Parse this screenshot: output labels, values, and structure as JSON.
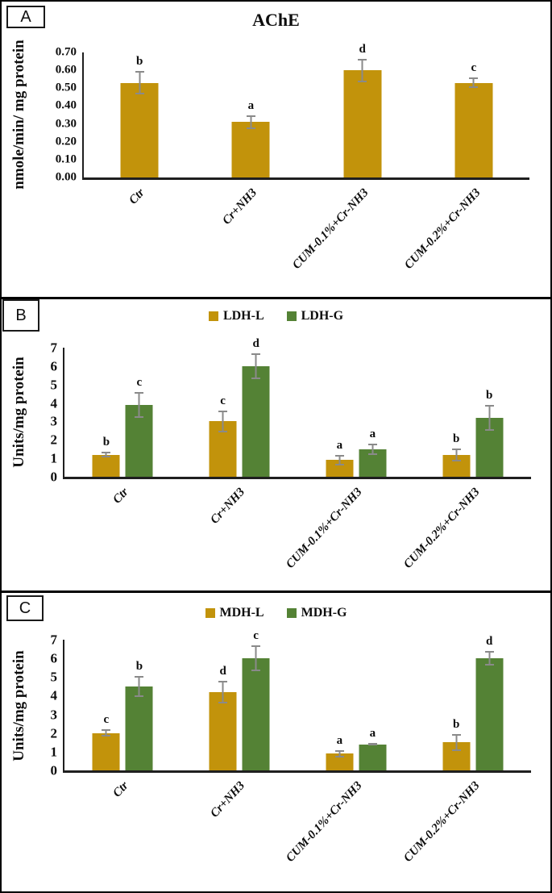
{
  "colors": {
    "gold": "#C2930B",
    "green": "#548235",
    "error_bar": "#8a8a8a",
    "axis": "#1f1f1f",
    "border": "#000000",
    "background": "#ffffff"
  },
  "chart_data": [
    {
      "panel": "A",
      "type": "bar",
      "title": "AChE",
      "ylabel": "nmole/min/ mg protein",
      "ylim": [
        0,
        0.7
      ],
      "ytick_step": 0.1,
      "yticks": [
        "0.70",
        "0.60",
        "0.50",
        "0.40",
        "0.30",
        "0.20",
        "0.10",
        "0.00"
      ],
      "categories": [
        "Ctr",
        "Cr+NH3",
        "CUM-0.1%+Cr-NH3",
        "CUM-0.2%+Cr-NH3"
      ],
      "grid": false,
      "show_legend": false,
      "series": [
        {
          "name": "AChE",
          "color": "#C2930B",
          "values": [
            0.53,
            0.31,
            0.6,
            0.53
          ],
          "errors": [
            0.065,
            0.04,
            0.065,
            0.03
          ],
          "sig_letters": [
            "b",
            "a",
            "d",
            "c"
          ]
        }
      ]
    },
    {
      "panel": "B",
      "type": "bar",
      "title": null,
      "ylabel": "Units/mg protein",
      "ylim": [
        0,
        7
      ],
      "ytick_step": 1,
      "yticks": [
        "7",
        "6",
        "5",
        "4",
        "3",
        "2",
        "1",
        "0"
      ],
      "categories": [
        "Ctr",
        "Cr+NH3",
        "CUM-0.1%+Cr-NH3",
        "CUM-0.2%+Cr-NH3"
      ],
      "grid": false,
      "show_legend": true,
      "legend_position": "top",
      "series": [
        {
          "name": "LDH-L",
          "color": "#C2930B",
          "values": [
            1.2,
            3.0,
            0.9,
            1.2
          ],
          "errors": [
            0.15,
            0.6,
            0.3,
            0.35
          ],
          "sig_letters": [
            "b",
            "c",
            "a",
            "b"
          ]
        },
        {
          "name": "LDH-G",
          "color": "#548235",
          "values": [
            3.9,
            6.0,
            1.5,
            3.2
          ],
          "errors": [
            0.7,
            0.7,
            0.3,
            0.7
          ],
          "sig_letters": [
            "c",
            "d",
            "a",
            "b"
          ]
        }
      ]
    },
    {
      "panel": "C",
      "type": "bar",
      "title": null,
      "ylabel": "Units/mg protein",
      "ylim": [
        0,
        7
      ],
      "ytick_step": 1,
      "yticks": [
        "7",
        "6",
        "5",
        "4",
        "3",
        "2",
        "1",
        "0"
      ],
      "categories": [
        "Ctr",
        "Cr+NH3",
        "CUM-0.1%+Cr-NH3",
        "CUM-0.2%+Cr-NH3"
      ],
      "grid": false,
      "show_legend": true,
      "legend_position": "top",
      "series": [
        {
          "name": "MDH-L",
          "color": "#C2930B",
          "values": [
            2.0,
            4.2,
            0.9,
            1.5
          ],
          "errors": [
            0.2,
            0.6,
            0.2,
            0.45
          ],
          "sig_letters": [
            "c",
            "d",
            "a",
            "b"
          ]
        },
        {
          "name": "MDH-G",
          "color": "#548235",
          "values": [
            4.5,
            6.0,
            1.4,
            6.0
          ],
          "errors": [
            0.55,
            0.7,
            0.05,
            0.4
          ],
          "sig_letters": [
            "b",
            "c",
            "a",
            "d"
          ]
        }
      ]
    }
  ]
}
